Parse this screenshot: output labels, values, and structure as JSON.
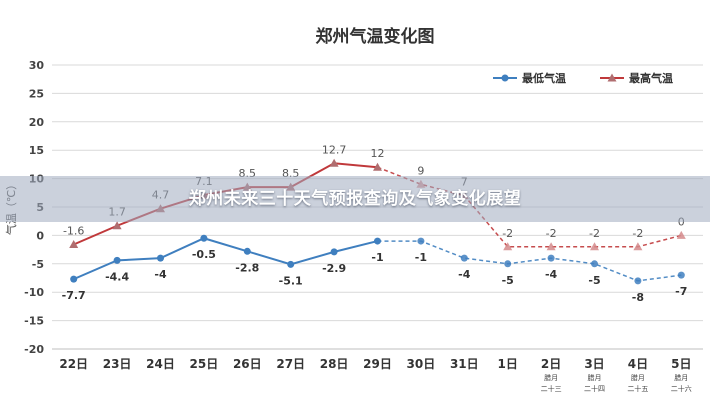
{
  "chart_data": {
    "type": "line",
    "title": "郑州气温变化图",
    "ylabel": "气温（℃）",
    "ylim": [
      -20,
      30
    ],
    "yticks": [
      -20,
      -15,
      -10,
      -5,
      0,
      5,
      10,
      15,
      20,
      25,
      30
    ],
    "grid": true,
    "legend_position": "top-right",
    "categories": [
      "22日",
      "23日",
      "24日",
      "25日",
      "26日",
      "27日",
      "28日",
      "29日",
      "30日",
      "31日",
      "1日",
      "2日",
      "3日",
      "4日",
      "5日"
    ],
    "sub_labels": [
      "",
      "",
      "",
      "",
      "",
      "",
      "",
      "",
      "",
      "",
      "",
      "腊月\n二十三",
      "腊月\n二十四",
      "腊月\n二十五",
      "腊月\n二十六"
    ],
    "series": [
      {
        "name": "最低气温",
        "color": "#3f7fbf",
        "marker": "circle",
        "values": [
          -7.7,
          -4.4,
          -4,
          -0.5,
          -2.8,
          -5.1,
          -2.9,
          -1,
          -1,
          -4,
          -5,
          -4,
          -5,
          -8,
          -7
        ],
        "labels": [
          "-7.7",
          "-4.4",
          "-4",
          "-0.5",
          "-2.8",
          "-5.1",
          "-2.9",
          "-1",
          "-1",
          "-4",
          "-5",
          "-4",
          "-5",
          "-8",
          "-7"
        ],
        "solid_until_index": 7
      },
      {
        "name": "最高气温",
        "color": "#c0393b",
        "marker": "triangle",
        "values": [
          -1.6,
          1.7,
          4.7,
          7.1,
          8.5,
          8.5,
          12.7,
          12,
          9,
          7,
          -2,
          -2,
          -2,
          -2,
          0
        ],
        "labels": [
          "-1.6",
          "1.7",
          "4.7",
          "7.1",
          "8.5",
          "8.5",
          "12.7",
          "12",
          "9",
          "7",
          "-2",
          "-2",
          "-2",
          "-2",
          "0"
        ],
        "solid_until_index": 7
      }
    ]
  },
  "banner": {
    "text": "郑州未来三十天气预报查询及气象变化展望"
  }
}
